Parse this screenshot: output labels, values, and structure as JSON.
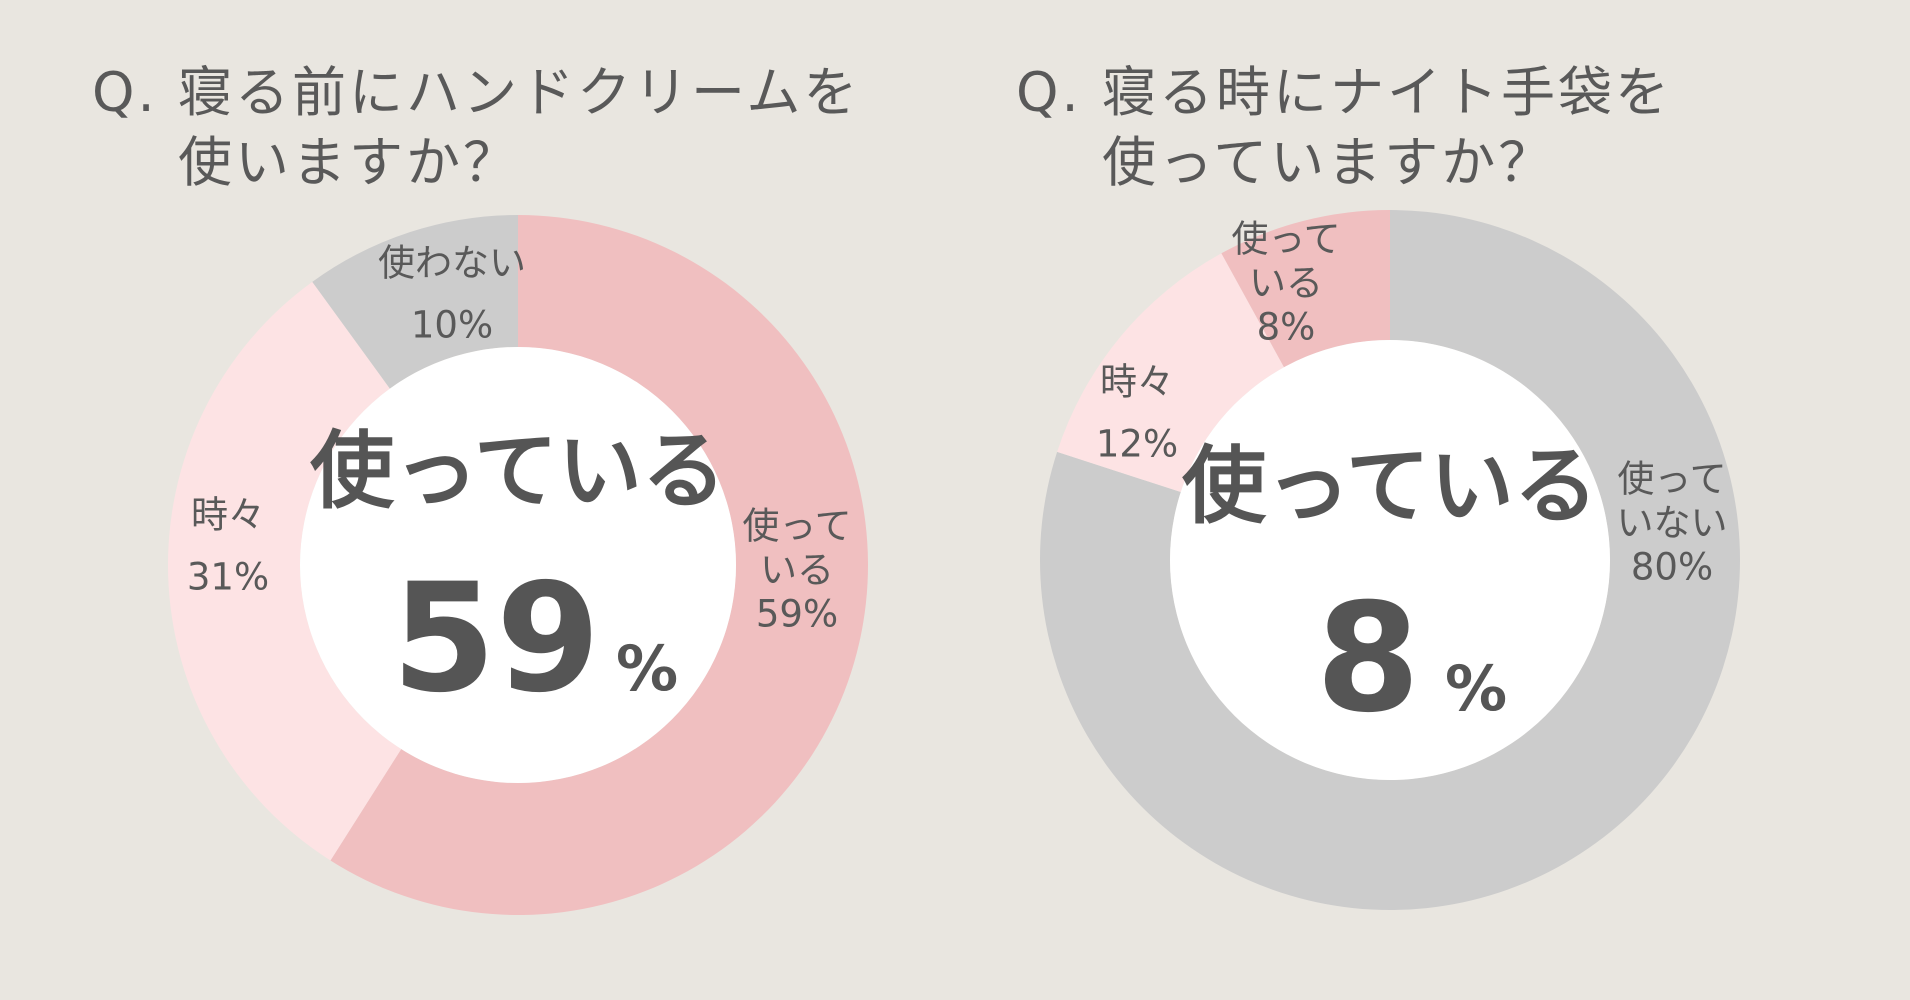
{
  "questions": [
    {
      "mark": "Q.",
      "line1": "寝る前にハンドクリームを",
      "line2": "使いますか？"
    },
    {
      "mark": "Q.",
      "line1": "寝る時にナイト手袋を",
      "line2": "使っていますか？"
    }
  ],
  "colors": {
    "background": "#e9e6e0",
    "used": "#f0bfc0",
    "sometimes": "#fde3e4",
    "not_used": "#cccccc",
    "center": "#ffffff",
    "text": "#555555"
  },
  "chart_data": [
    {
      "type": "pie",
      "title": "Q. 寝る前にハンドクリームを使いますか？",
      "center_label": "使っている",
      "center_value": "59",
      "center_unit": "%",
      "slices": [
        {
          "key": "used",
          "label_lines": [
            "使って",
            "いる"
          ],
          "value": 59,
          "value_label": "59%"
        },
        {
          "key": "sometimes",
          "label_lines": [
            "時々"
          ],
          "value": 31,
          "value_label": "31%"
        },
        {
          "key": "not_used",
          "label_lines": [
            "使わない"
          ],
          "value": 10,
          "value_label": "10%"
        }
      ]
    },
    {
      "type": "pie",
      "title": "Q. 寝る時にナイト手袋を使っていますか？",
      "center_label": "使っている",
      "center_value": "8",
      "center_unit": "%",
      "slices": [
        {
          "key": "not_used",
          "label_lines": [
            "使って",
            "いない"
          ],
          "value": 80,
          "value_label": "80%"
        },
        {
          "key": "sometimes",
          "label_lines": [
            "時々"
          ],
          "value": 12,
          "value_label": "12%"
        },
        {
          "key": "used",
          "label_lines": [
            "使って",
            "いる"
          ],
          "value": 8,
          "value_label": "8%"
        }
      ]
    }
  ]
}
